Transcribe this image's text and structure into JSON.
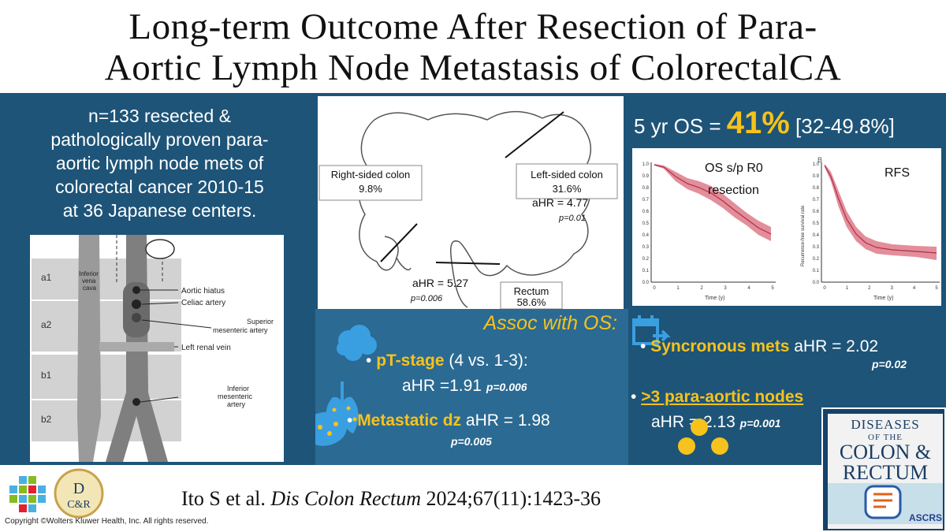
{
  "title": {
    "line1": "Long-term Outcome After Resection of Para-",
    "line2": "Aortic Lymph Node Metastasis of ColorectalCA"
  },
  "cohort": {
    "line1": "n=133 resected &",
    "line2": "pathologically proven para-",
    "line3": "aortic lymph node mets of",
    "line4": "colorectal cancer 2010-15",
    "line5": "at 36 Japanese centers."
  },
  "anatomy": {
    "zones": [
      "a1",
      "a2",
      "b1",
      "b2"
    ],
    "ivc_label": "Inferior\nvena\ncava",
    "labels": {
      "aortic_hiatus": "Aortic hiatus",
      "celiac": "Celiac artery",
      "sma_line1": "Superior",
      "sma_line2": "mesenteric artery",
      "renal": "Left renal vein",
      "ima_line1": "Inferior",
      "ima_line2": "mesenteric",
      "ima_line3": "artery"
    }
  },
  "colon": {
    "right_label": "Right-sided colon",
    "right_pct": "9.8%",
    "left_label": "Left-sided colon",
    "left_pct": "31.6%",
    "left_ahr": "aHR = 4.77",
    "left_p": "p=0.01",
    "rectum_label": "Rectum",
    "rectum_pct": "58.6%",
    "rectum_ahr": "aHR = 5.27",
    "rectum_p": "p=0.006"
  },
  "os_summary": {
    "prefix": "5 yr OS = ",
    "value": "41%",
    "ci": " [32-49.8%]"
  },
  "km": {
    "left_label_line1": "OS s/p R0",
    "left_label_line2": "resection",
    "right_label": "RFS",
    "panel_b_letter": "B",
    "y_ticks": [
      "1.0",
      "0.9",
      "0.8",
      "0.7",
      "0.6",
      "0.5",
      "0.4",
      "0.3",
      "0.2",
      "0.1",
      "0.0"
    ],
    "x_ticks": [
      "0",
      "1",
      "2",
      "3",
      "4",
      "5"
    ],
    "x_axis": "Time (y)",
    "y_axis_right": "Recurrence-free survival rate",
    "band_color": "#d9687a"
  },
  "assoc": {
    "heading": "Assoc with OS:",
    "item1_bold": "pT-stage",
    "item1_rest": " (4 vs. 1-3):",
    "item1_ahr": "aHR =1.91",
    "item1_p": "p=0.006",
    "item2_bold": "Metastatic dz",
    "item2_ahr": " aHR = 1.98",
    "item2_p": "p=0.005"
  },
  "right_items": {
    "sync_bold": "Syncronous mets",
    "sync_ahr": " aHR = 2.02",
    "sync_p": "p=0.02",
    "nodes_bold": ">3 para-aortic nodes",
    "nodes_ahr": "aHR = 2.13",
    "nodes_p": "p=0.001"
  },
  "citation": {
    "authors": "Ito S et al. ",
    "journal": "Dis Colon Rectum",
    "details": " 2024;67(11):1423-36"
  },
  "copyright": "Copyright ©Wolters Kluwer Health, Inc. All rights reserved.",
  "journal_cover": {
    "line1": "DISEASES",
    "line2": "OF THE",
    "line3": "COLON &",
    "line4": "RECTUM",
    "society": "ASCRS"
  },
  "dcr_logo": {
    "d": "D",
    "cr": "C&R"
  },
  "colors": {
    "band": "#1e5478",
    "accent": "#f6c21c",
    "assoc_panel": "#2b6a93"
  }
}
